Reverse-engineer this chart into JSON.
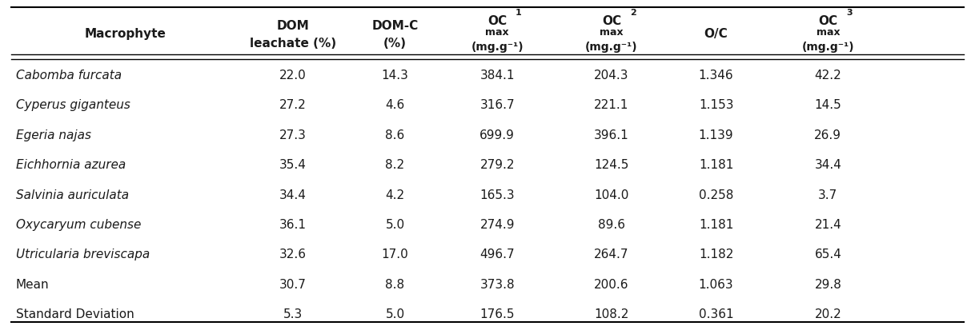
{
  "col_headers": [
    [
      "Macrophyte",
      "",
      "DOM\nleachate (%)",
      "DOM-C\n(%)",
      "OC_max_1\n(mg.g⁻¹)",
      "OC_max_2\n(mg.g⁻¹)",
      "O/C",
      "OC_max_3\n(mg.g⁻¹)"
    ],
    [
      "Macrophyte",
      "",
      "DOM\nleachate (%)",
      "DOM-C\n(%)",
      "OC  1\nmax\n(mg.g⁻¹)",
      "OC  2\nmax\n(mg.g⁻¹)",
      "O/C",
      "OC  3\nmax\n(mg.g⁻¹)"
    ]
  ],
  "rows": [
    [
      "Cabomba furcata",
      "22.0",
      "14.3",
      "384.1",
      "204.3",
      "1.346",
      "42.2"
    ],
    [
      "Cyperus giganteus",
      "27.2",
      "4.6",
      "316.7",
      "221.1",
      "1.153",
      "14.5"
    ],
    [
      "Egeria najas",
      "27.3",
      "8.6",
      "699.9",
      "396.1",
      "1.139",
      "26.9"
    ],
    [
      "Eichhornia azurea",
      "35.4",
      "8.2",
      "279.2",
      "124.5",
      "1.181",
      "34.4"
    ],
    [
      "Salvinia auriculata",
      "34.4",
      "4.2",
      "165.3",
      "104.0",
      "0.258",
      "3.7"
    ],
    [
      "Oxycaryum cubense",
      "36.1",
      "5.0",
      "274.9",
      "89.6",
      "1.181",
      "21.4"
    ],
    [
      "Utricularia breviscapa",
      "32.6",
      "17.0",
      "496.7",
      "264.7",
      "1.182",
      "65.4"
    ],
    [
      "Mean",
      "30.7",
      "8.8",
      "373.8",
      "200.6",
      "1.063",
      "29.8"
    ],
    [
      "Standard Deviation",
      "5.3",
      "5.0",
      "176.5",
      "108.2",
      "0.361",
      "20.2"
    ]
  ],
  "italic_rows": [
    0,
    1,
    2,
    3,
    4,
    5,
    6
  ],
  "background_color": "#ffffff",
  "header_line_color": "#000000",
  "text_color": "#333333",
  "font_size": 11
}
